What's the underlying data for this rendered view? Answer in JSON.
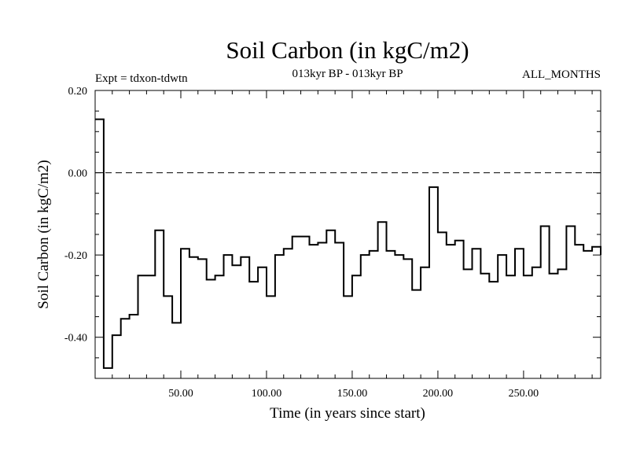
{
  "chart_data": {
    "type": "line",
    "style": "step",
    "title": "Soil Carbon (in kgC/m2)",
    "subtitle": "013kyr BP - 013kyr BP",
    "experiment_label": "Expt = tdxon-tdwtn",
    "period_label": "ALL_MONTHS",
    "xlabel": "Time (in years since start)",
    "ylabel": "Soil Carbon (in kgC/m2)",
    "xlim": [
      0,
      295
    ],
    "ylim": [
      -0.5,
      0.2
    ],
    "xticks": [
      50,
      100,
      150,
      200,
      250
    ],
    "xtick_labels": [
      "50.00",
      "100.00",
      "150.00",
      "200.00",
      "250.00"
    ],
    "yticks": [
      -0.4,
      -0.2,
      0.0,
      0.2
    ],
    "ytick_labels": [
      "-0.40",
      "-0.20",
      "0.00",
      "0.20"
    ],
    "reference_line": {
      "y": 0.0,
      "style": "dashed"
    },
    "series": [
      {
        "name": "Soil Carbon",
        "x": [
          0,
          5,
          10,
          15,
          20,
          25,
          30,
          35,
          40,
          45,
          50,
          55,
          60,
          65,
          70,
          75,
          80,
          85,
          90,
          95,
          100,
          105,
          110,
          115,
          120,
          125,
          130,
          135,
          140,
          145,
          150,
          155,
          160,
          165,
          170,
          175,
          180,
          185,
          190,
          195,
          200,
          205,
          210,
          215,
          220,
          225,
          230,
          235,
          240,
          245,
          250,
          255,
          260,
          265,
          270,
          275,
          280,
          285,
          290,
          295
        ],
        "values": [
          0.13,
          -0.475,
          -0.395,
          -0.355,
          -0.345,
          -0.25,
          -0.25,
          -0.14,
          -0.3,
          -0.365,
          -0.185,
          -0.205,
          -0.21,
          -0.26,
          -0.25,
          -0.2,
          -0.225,
          -0.205,
          -0.265,
          -0.23,
          -0.3,
          -0.2,
          -0.185,
          -0.155,
          -0.155,
          -0.175,
          -0.17,
          -0.14,
          -0.17,
          -0.3,
          -0.25,
          -0.2,
          -0.19,
          -0.12,
          -0.19,
          -0.2,
          -0.21,
          -0.285,
          -0.23,
          -0.035,
          -0.145,
          -0.175,
          -0.165,
          -0.235,
          -0.185,
          -0.245,
          -0.265,
          -0.2,
          -0.25,
          -0.185,
          -0.25,
          -0.23,
          -0.13,
          -0.245,
          -0.235,
          -0.13,
          -0.175,
          -0.19,
          -0.18,
          -0.2
        ]
      }
    ]
  }
}
